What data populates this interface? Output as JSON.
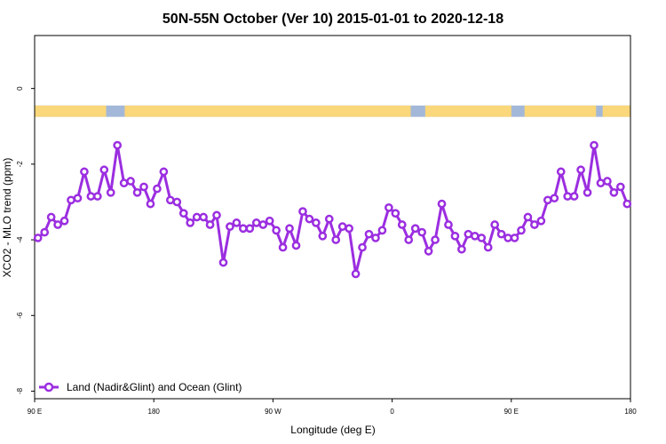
{
  "chart_data": {
    "type": "line",
    "title": "50N-55N October (Ver 10)   2015-01-01 to 2020-12-18",
    "xlabel": "Longitude (deg E)",
    "ylabel": "XCO2 - MLO trend (ppm)",
    "xlim": [
      90,
      540
    ],
    "ylim": [
      -8.2,
      1.4
    ],
    "x_ticks": [
      {
        "value": 90,
        "label": "90 E"
      },
      {
        "value": 180,
        "label": "180"
      },
      {
        "value": 270,
        "label": "90 W"
      },
      {
        "value": 360,
        "label": "0"
      },
      {
        "value": 450,
        "label": "90 E"
      },
      {
        "value": 540,
        "label": "180"
      }
    ],
    "y_ticks": [
      {
        "value": 0,
        "label": "0"
      },
      {
        "value": -2,
        "label": "-2"
      },
      {
        "value": -4,
        "label": "-4"
      },
      {
        "value": -6,
        "label": "-6"
      },
      {
        "value": -8,
        "label": "-8"
      }
    ],
    "grid": false,
    "legend_position": "bottom-left",
    "land_ocean_strip": {
      "y_range": [
        -0.75,
        -0.45
      ],
      "ocean_color": "#a3b8d8",
      "land_color": "#fad77a",
      "land_segments": [
        [
          90,
          144
        ],
        [
          158,
          374
        ],
        [
          385,
          450
        ],
        [
          460,
          514
        ],
        [
          519,
          540
        ]
      ]
    },
    "series": [
      {
        "name": "Land (Nadir&Glint) and Ocean (Glint)",
        "color": "#9b2ee0",
        "x": [
          92.5,
          97.5,
          102.5,
          107.5,
          112.5,
          117.5,
          122.5,
          127.5,
          132.5,
          137.5,
          142.5,
          147.5,
          152.5,
          157.5,
          162.5,
          167.5,
          172.5,
          177.5,
          182.5,
          187.5,
          192.5,
          197.5,
          202.5,
          207.5,
          212.5,
          217.5,
          222.5,
          227.5,
          232.5,
          237.5,
          242.5,
          247.5,
          252.5,
          257.5,
          262.5,
          267.5,
          272.5,
          277.5,
          282.5,
          287.5,
          292.5,
          297.5,
          302.5,
          307.5,
          312.5,
          317.5,
          322.5,
          327.5,
          332.5,
          337.5,
          342.5,
          347.5,
          352.5,
          357.5,
          362.5,
          367.5,
          372.5,
          377.5,
          382.5,
          387.5,
          392.5,
          397.5,
          402.5,
          407.5,
          412.5,
          417.5,
          422.5,
          427.5,
          432.5,
          437.5,
          442.5,
          447.5,
          452.5,
          457.5,
          462.5,
          467.5,
          472.5,
          477.5,
          482.5,
          487.5,
          492.5,
          497.5,
          502.5,
          507.5,
          512.5,
          517.5,
          522.5,
          527.5,
          532.5,
          537.5
        ],
        "y": [
          -3.95,
          -3.8,
          -3.4,
          -3.6,
          -3.5,
          -2.95,
          -2.9,
          -2.2,
          -2.85,
          -2.85,
          -2.15,
          -2.75,
          -1.5,
          -2.5,
          -2.45,
          -2.75,
          -2.6,
          -3.05,
          -2.65,
          -2.2,
          -2.95,
          -3.0,
          -3.3,
          -3.55,
          -3.4,
          -3.4,
          -3.6,
          -3.35,
          -4.6,
          -3.65,
          -3.55,
          -3.7,
          -3.7,
          -3.55,
          -3.6,
          -3.5,
          -3.75,
          -4.2,
          -3.7,
          -4.15,
          -3.25,
          -3.45,
          -3.55,
          -3.9,
          -3.45,
          -4.0,
          -3.65,
          -3.7,
          -4.9,
          -4.2,
          -3.85,
          -3.95,
          -3.75,
          -3.15,
          -3.3,
          -3.6,
          -4.0,
          -3.7,
          -3.8,
          -4.3,
          -4.0,
          -3.05,
          -3.6,
          -3.9,
          -4.25,
          -3.85,
          -3.9,
          -3.95,
          -4.2,
          -3.6,
          -3.85,
          -3.95,
          -3.95,
          -3.75,
          -3.4,
          -3.6,
          -3.5,
          -2.95,
          -2.9,
          -2.2,
          -2.85,
          -2.85,
          -2.15,
          -2.75,
          -1.5,
          -2.5,
          -2.45,
          -2.75,
          -2.6,
          -3.05
        ]
      }
    ]
  }
}
